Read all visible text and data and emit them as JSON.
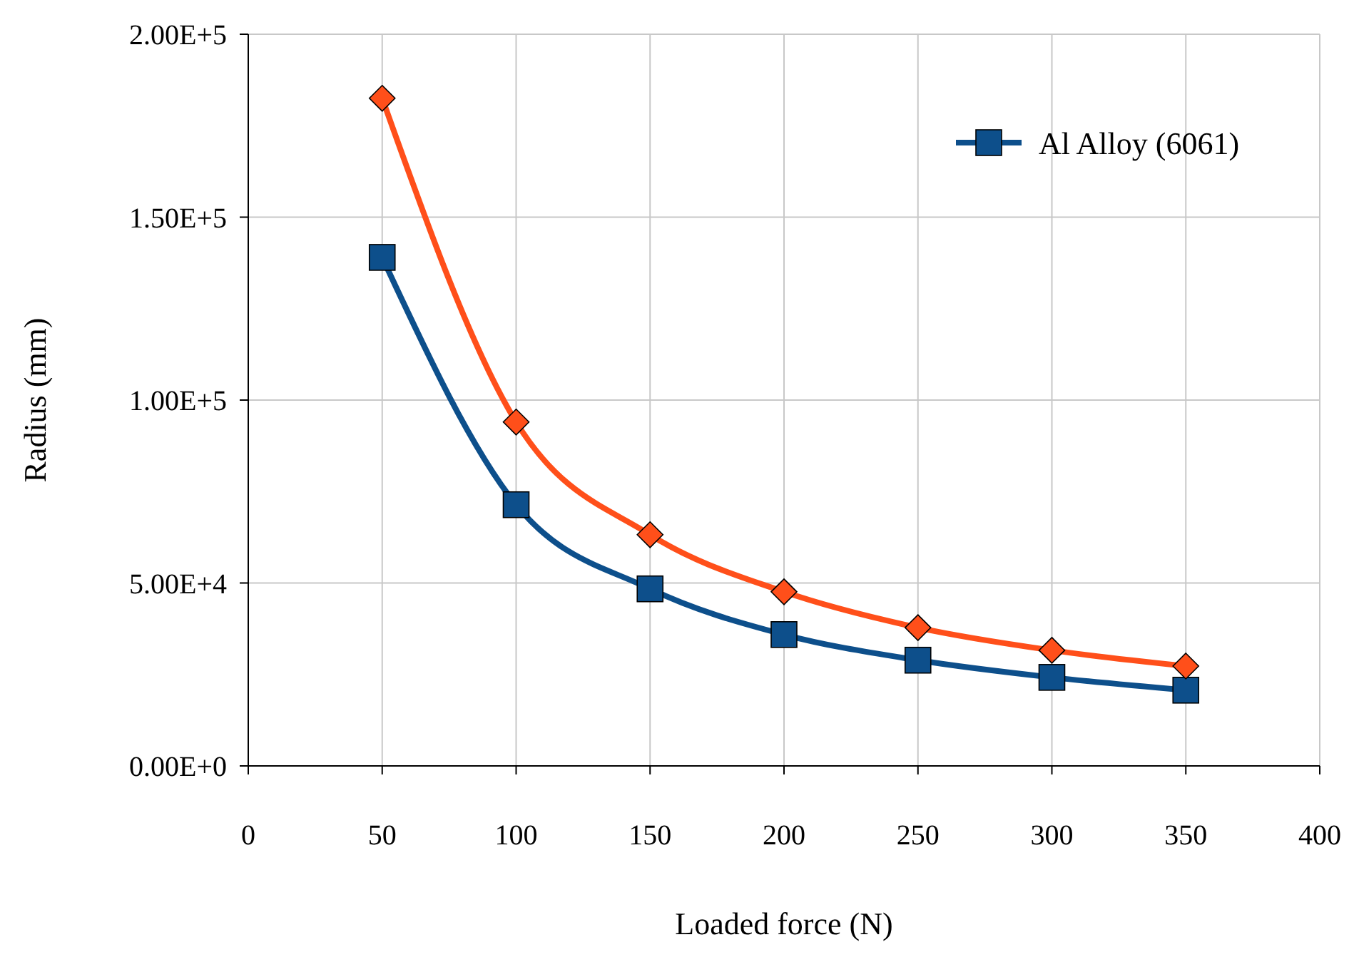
{
  "chart_data": {
    "type": "line",
    "xlabel": "Loaded force (N)",
    "ylabel": "Radius (mm)",
    "x": [
      50,
      100,
      150,
      200,
      250,
      300,
      350
    ],
    "series": [
      {
        "name": "Al Alloy (6061)",
        "color": "#0d4f8b",
        "marker": "square",
        "values": [
          139000,
          71400,
          48400,
          35900,
          28900,
          24200,
          20700
        ]
      },
      {
        "color": "#ff4f1a",
        "marker": "diamond",
        "values": [
          182500,
          94000,
          63200,
          47600,
          37800,
          31600,
          27300
        ]
      }
    ],
    "xlim": [
      0,
      400
    ],
    "xticks": [
      0,
      50,
      100,
      150,
      200,
      250,
      300,
      350,
      400
    ],
    "ylim": [
      0,
      200000
    ],
    "yticks": [
      {
        "value": 0,
        "label": "0.00E+0"
      },
      {
        "value": 50000,
        "label": "5.00E+4"
      },
      {
        "value": 100000,
        "label": "1.00E+5"
      },
      {
        "value": 150000,
        "label": "1.50E+5"
      },
      {
        "value": 200000,
        "label": "2.00E+5"
      }
    ],
    "grid": true,
    "legend": "top right",
    "line_style": "solid"
  }
}
